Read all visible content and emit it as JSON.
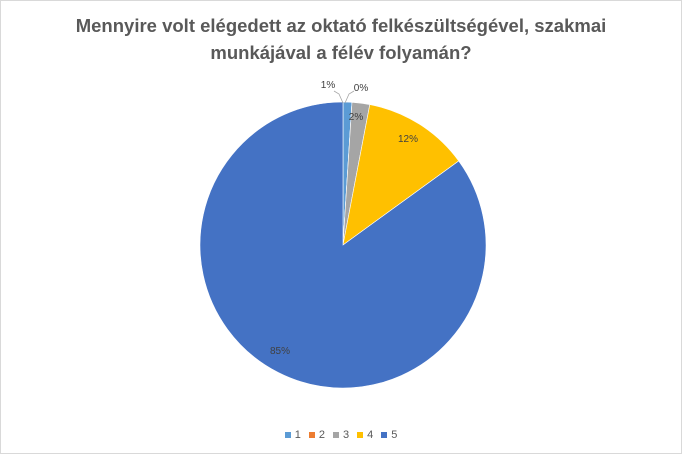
{
  "chart_data": {
    "type": "pie",
    "title": "Mennyire volt elégedett az oktató felkészültségével, szakmai\nmunkájával  a félév folyamán?",
    "categories": [
      "1",
      "2",
      "3",
      "4",
      "5"
    ],
    "values": [
      1,
      0,
      2,
      12,
      85
    ],
    "value_labels": [
      "1%",
      "0%",
      "2%",
      "12%",
      "85%"
    ],
    "colors": [
      "#5b9bd5",
      "#ed7d31",
      "#a5a5a5",
      "#ffc000",
      "#4472c4"
    ],
    "legend_position": "bottom"
  }
}
